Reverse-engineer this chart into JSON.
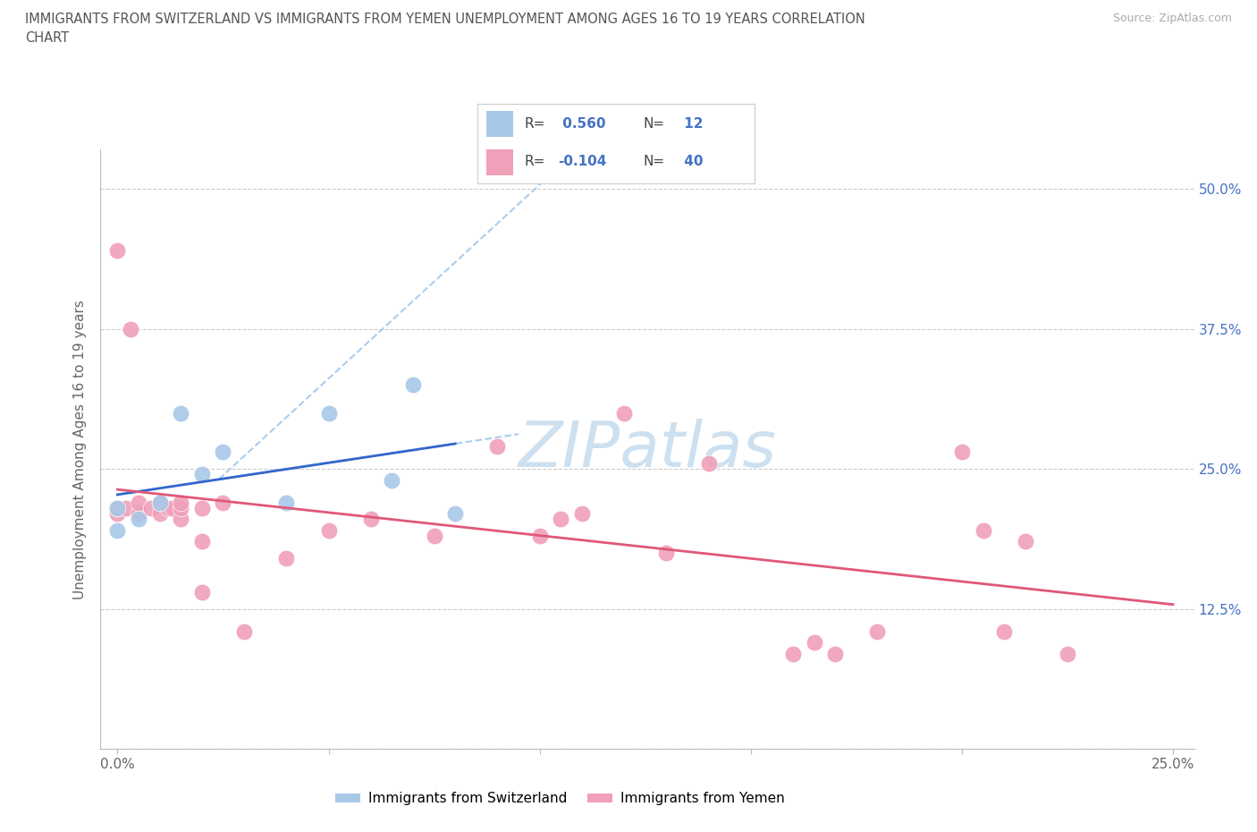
{
  "title_line1": "IMMIGRANTS FROM SWITZERLAND VS IMMIGRANTS FROM YEMEN UNEMPLOYMENT AMONG AGES 16 TO 19 YEARS CORRELATION",
  "title_line2": "CHART",
  "source_text": "Source: ZipAtlas.com",
  "ylabel": "Unemployment Among Ages 16 to 19 years",
  "xlim": [
    -0.004,
    0.255
  ],
  "ylim": [
    0.0,
    0.535
  ],
  "x_ticks": [
    0.0,
    0.05,
    0.1,
    0.15,
    0.2,
    0.25
  ],
  "x_tick_labels": [
    "0.0%",
    "",
    "",
    "",
    "",
    "25.0%"
  ],
  "y_ticks": [
    0.0,
    0.125,
    0.25,
    0.375,
    0.5
  ],
  "y_tick_labels_right": [
    "",
    "12.5%",
    "25.0%",
    "37.5%",
    "50.0%"
  ],
  "R_swiss": 0.56,
  "N_swiss": 12,
  "R_yemen": -0.104,
  "N_yemen": 40,
  "color_swiss": "#a8c8e8",
  "color_yemen": "#f0a0b8",
  "line_color_swiss": "#3366cc",
  "line_color_yemen": "#e05878",
  "dash_color": "#aaccee",
  "watermark_color": "#cce0f0",
  "swiss_x": [
    0.0,
    0.0,
    0.005,
    0.01,
    0.015,
    0.02,
    0.025,
    0.04,
    0.05,
    0.065,
    0.07,
    0.08
  ],
  "swiss_y": [
    0.195,
    0.215,
    0.205,
    0.22,
    0.3,
    0.245,
    0.265,
    0.22,
    0.3,
    0.24,
    0.325,
    0.21
  ],
  "yemen_x": [
    0.0,
    0.0,
    0.0,
    0.002,
    0.003,
    0.005,
    0.005,
    0.008,
    0.01,
    0.01,
    0.012,
    0.013,
    0.015,
    0.015,
    0.015,
    0.02,
    0.02,
    0.02,
    0.025,
    0.03,
    0.04,
    0.05,
    0.06,
    0.075,
    0.09,
    0.1,
    0.105,
    0.11,
    0.12,
    0.13,
    0.14,
    0.16,
    0.165,
    0.17,
    0.18,
    0.2,
    0.205,
    0.21,
    0.215,
    0.225
  ],
  "yemen_y": [
    0.21,
    0.215,
    0.445,
    0.215,
    0.375,
    0.21,
    0.22,
    0.215,
    0.21,
    0.22,
    0.215,
    0.215,
    0.205,
    0.215,
    0.22,
    0.185,
    0.215,
    0.14,
    0.22,
    0.105,
    0.17,
    0.195,
    0.205,
    0.19,
    0.27,
    0.19,
    0.205,
    0.21,
    0.3,
    0.175,
    0.255,
    0.085,
    0.095,
    0.085,
    0.105,
    0.265,
    0.195,
    0.105,
    0.185,
    0.085
  ]
}
